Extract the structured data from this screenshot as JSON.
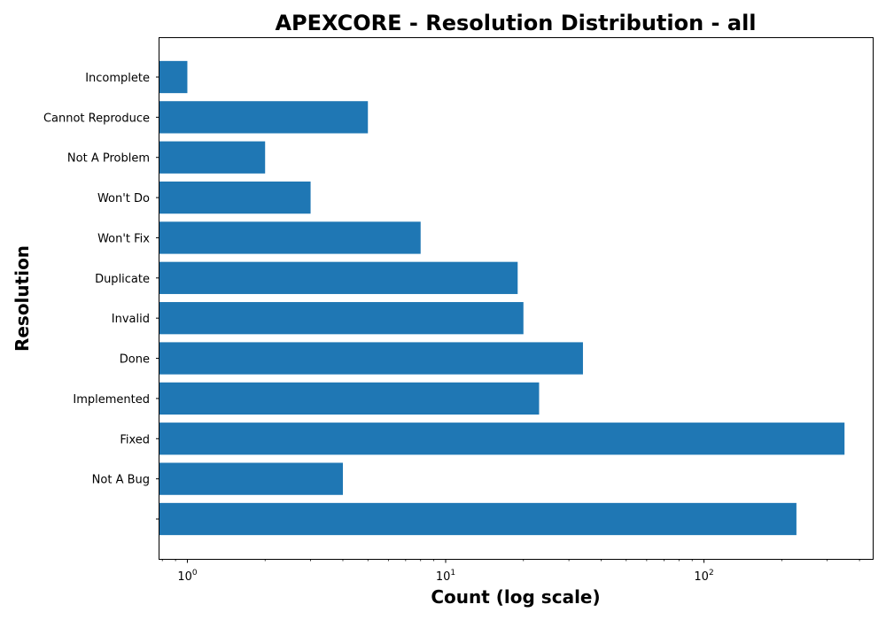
{
  "chart_data": {
    "type": "bar",
    "orientation": "horizontal",
    "title": "APEXCORE - Resolution Distribution - all",
    "xlabel": "Count (log scale)",
    "ylabel": "Resolution",
    "x_scale": "log",
    "xlim": [
      0.78,
      450
    ],
    "x_ticks": [
      {
        "value": 1,
        "base": "10",
        "exp": "0"
      },
      {
        "value": 10,
        "base": "10",
        "exp": "1"
      },
      {
        "value": 100,
        "base": "10",
        "exp": "2"
      }
    ],
    "categories": [
      "",
      "Not A Bug",
      "Fixed",
      "Implemented",
      "Done",
      "Invalid",
      "Duplicate",
      "Won't Fix",
      "Won't Do",
      "Not A Problem",
      "Cannot Reproduce",
      "Incomplete"
    ],
    "values": [
      228,
      4,
      350,
      23,
      34,
      20,
      19,
      8,
      3,
      2,
      5,
      1
    ],
    "bar_color": "#1f77b4",
    "grid": false,
    "legend": "none"
  }
}
